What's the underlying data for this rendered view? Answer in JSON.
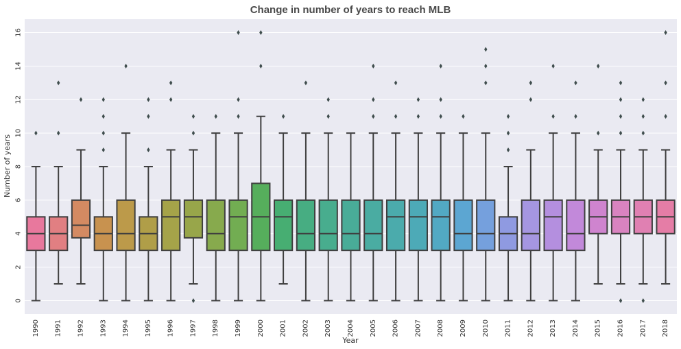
{
  "chart_data": {
    "type": "box",
    "title": "Change in number of years to reach MLB",
    "xlabel": "Year",
    "ylabel": "Number of years",
    "ylim": [
      -0.8,
      16.8
    ],
    "yticks": [
      0,
      2,
      4,
      6,
      8,
      10,
      12,
      14,
      16
    ],
    "grid": true,
    "colors": {
      "background": "#eaeaf2",
      "grid": "#ffffff",
      "box_edge": "#3f3f3f",
      "outlier": "#3f4d4d"
    },
    "categories": [
      "1990",
      "1991",
      "1992",
      "1993",
      "1994",
      "1995",
      "1996",
      "1997",
      "1998",
      "1999",
      "2000",
      "2001",
      "2002",
      "2003",
      "2004",
      "2005",
      "2006",
      "2007",
      "2008",
      "2009",
      "2010",
      "2011",
      "2012",
      "2013",
      "2014",
      "2015",
      "2016",
      "2017",
      "2018"
    ],
    "boxes": [
      {
        "year": "1990",
        "whislo": 0,
        "q1": 3,
        "med": 4,
        "q3": 5,
        "whishi": 8,
        "fliers": [
          10
        ],
        "color": "#e8789d"
      },
      {
        "year": "1991",
        "whislo": 1,
        "q1": 3,
        "med": 4,
        "q3": 5,
        "whishi": 8,
        "fliers": [
          10,
          13
        ],
        "color": "#e17f82"
      },
      {
        "year": "1992",
        "whislo": 1,
        "q1": 3.75,
        "med": 4.5,
        "q3": 6,
        "whishi": 9,
        "fliers": [
          12
        ],
        "color": "#d48a62"
      },
      {
        "year": "1993",
        "whislo": 0,
        "q1": 3,
        "med": 4,
        "q3": 5,
        "whishi": 8,
        "fliers": [
          9,
          10,
          11,
          12
        ],
        "color": "#c8924f"
      },
      {
        "year": "1994",
        "whislo": 0,
        "q1": 3,
        "med": 4,
        "q3": 6,
        "whishi": 10,
        "fliers": [
          14
        ],
        "color": "#bc9a4a"
      },
      {
        "year": "1995",
        "whislo": 0,
        "q1": 3,
        "med": 4,
        "q3": 5,
        "whishi": 8,
        "fliers": [
          9,
          11,
          12
        ],
        "color": "#b09e48"
      },
      {
        "year": "1996",
        "whislo": 0,
        "q1": 3,
        "med": 5,
        "q3": 6,
        "whishi": 9,
        "fliers": [
          12,
          13
        ],
        "color": "#a5a349"
      },
      {
        "year": "1997",
        "whislo": 1,
        "q1": 3.75,
        "med": 5,
        "q3": 6,
        "whishi": 9,
        "fliers": [
          0,
          10,
          11
        ],
        "color": "#98a64a"
      },
      {
        "year": "1998",
        "whislo": 0,
        "q1": 3,
        "med": 4,
        "q3": 6,
        "whishi": 10,
        "fliers": [
          11
        ],
        "color": "#87aa4d"
      },
      {
        "year": "1999",
        "whislo": 0,
        "q1": 3,
        "med": 5,
        "q3": 6,
        "whishi": 10,
        "fliers": [
          11,
          12,
          16
        ],
        "color": "#72ad52"
      },
      {
        "year": "2000",
        "whislo": 0,
        "q1": 3,
        "med": 5,
        "q3": 7,
        "whishi": 11,
        "fliers": [
          14,
          16
        ],
        "color": "#56ae5c"
      },
      {
        "year": "2001",
        "whislo": 1,
        "q1": 3,
        "med": 5,
        "q3": 6,
        "whishi": 10,
        "fliers": [
          11
        ],
        "color": "#47ae72"
      },
      {
        "year": "2002",
        "whislo": 0,
        "q1": 3,
        "med": 4,
        "q3": 6,
        "whishi": 10,
        "fliers": [
          13
        ],
        "color": "#47ad82"
      },
      {
        "year": "2003",
        "whislo": 0,
        "q1": 3,
        "med": 4,
        "q3": 6,
        "whishi": 10,
        "fliers": [
          11,
          12
        ],
        "color": "#48ad8e"
      },
      {
        "year": "2004",
        "whislo": 0,
        "q1": 3,
        "med": 4,
        "q3": 6,
        "whishi": 10,
        "fliers": [],
        "color": "#49ac98"
      },
      {
        "year": "2005",
        "whislo": 0,
        "q1": 3,
        "med": 4,
        "q3": 6,
        "whishi": 10,
        "fliers": [
          11,
          12,
          14
        ],
        "color": "#4aaca2"
      },
      {
        "year": "2006",
        "whislo": 0,
        "q1": 3,
        "med": 5,
        "q3": 6,
        "whishi": 10,
        "fliers": [
          11,
          13
        ],
        "color": "#4babac"
      },
      {
        "year": "2007",
        "whislo": 0,
        "q1": 3,
        "med": 5,
        "q3": 6,
        "whishi": 10,
        "fliers": [
          11,
          12
        ],
        "color": "#4daab7"
      },
      {
        "year": "2008",
        "whislo": 0,
        "q1": 3,
        "med": 5,
        "q3": 6,
        "whishi": 10,
        "fliers": [
          11,
          12,
          14
        ],
        "color": "#52a9c3"
      },
      {
        "year": "2009",
        "whislo": 0,
        "q1": 3,
        "med": 4,
        "q3": 6,
        "whishi": 10,
        "fliers": [
          11
        ],
        "color": "#5ca6d2"
      },
      {
        "year": "2010",
        "whislo": 0,
        "q1": 3,
        "med": 4,
        "q3": 6,
        "whishi": 10,
        "fliers": [
          13,
          14,
          15
        ],
        "color": "#75a0dd"
      },
      {
        "year": "2011",
        "whislo": 0,
        "q1": 3,
        "med": 4,
        "q3": 5,
        "whishi": 8,
        "fliers": [
          9,
          10,
          11
        ],
        "color": "#8f9ae1"
      },
      {
        "year": "2012",
        "whislo": 0,
        "q1": 3,
        "med": 4,
        "q3": 6,
        "whishi": 9,
        "fliers": [
          12,
          13
        ],
        "color": "#a596e1"
      },
      {
        "year": "2013",
        "whislo": 0,
        "q1": 3,
        "med": 5,
        "q3": 6,
        "whishi": 10,
        "fliers": [
          11,
          14
        ],
        "color": "#b48fdf"
      },
      {
        "year": "2014",
        "whislo": 0,
        "q1": 3,
        "med": 4,
        "q3": 6,
        "whishi": 10,
        "fliers": [
          11,
          13
        ],
        "color": "#c289da"
      },
      {
        "year": "2015",
        "whislo": 1,
        "q1": 4,
        "med": 5,
        "q3": 6,
        "whishi": 9,
        "fliers": [
          10,
          14
        ],
        "color": "#cf84cf"
      },
      {
        "year": "2016",
        "whislo": 1,
        "q1": 4,
        "med": 5,
        "q3": 6,
        "whishi": 9,
        "fliers": [
          0,
          10,
          11,
          12,
          13
        ],
        "color": "#d983c0"
      },
      {
        "year": "2017",
        "whislo": 1,
        "q1": 4,
        "med": 5,
        "q3": 6,
        "whishi": 9,
        "fliers": [
          0,
          10,
          11,
          12
        ],
        "color": "#e080b2"
      },
      {
        "year": "2018",
        "whislo": 1,
        "q1": 4,
        "med": 5,
        "q3": 6,
        "whishi": 9,
        "fliers": [
          11,
          13,
          16
        ],
        "color": "#e57da6"
      }
    ]
  }
}
